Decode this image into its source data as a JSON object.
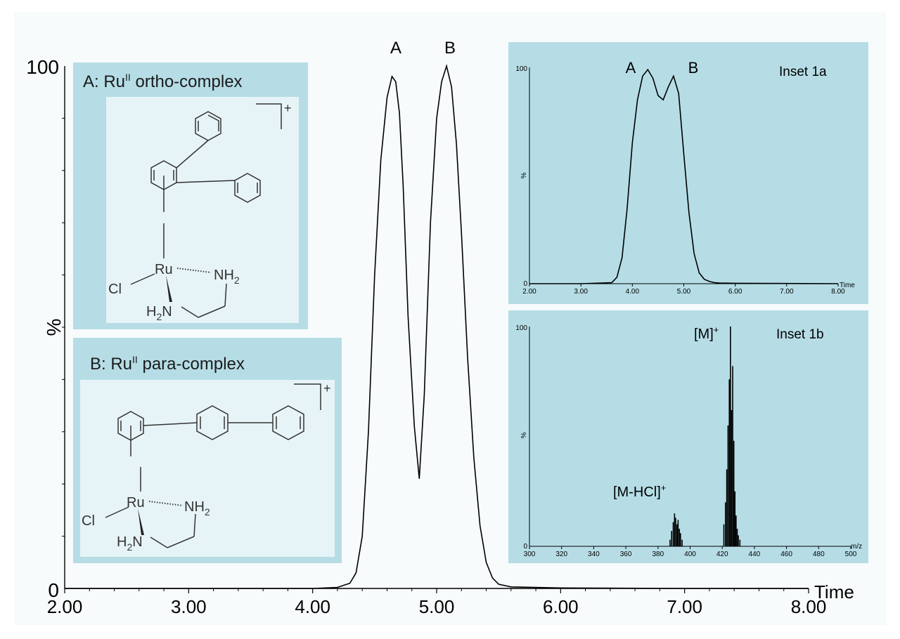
{
  "colors": {
    "page_bg": "#ffffff",
    "plot_bg": "#f7fbfc",
    "panel_bg": "#b6dde6",
    "panel_inner_bg": "#e7f4f7",
    "line": "#000000",
    "structure": "#333333"
  },
  "main": {
    "ylabel": "%",
    "x_axis_title": "Time",
    "y_tick_labels": [
      "0",
      "100"
    ],
    "peak_labels": [
      "A",
      "B"
    ]
  },
  "panels": {
    "ortho": {
      "title_prefix": "A:  Ru",
      "title_sup": "II",
      "title_suffix": " ortho-complex",
      "atoms": {
        "ru": "Ru",
        "cl": "Cl",
        "nh2": "NH",
        "h2n_h": "H",
        "h2n_n": "N",
        "sub2": "2",
        "charge": "+"
      }
    },
    "para": {
      "title_prefix": "B:  Ru",
      "title_sup": "II",
      "title_suffix": " para-complex",
      "atoms": {
        "ru": "Ru",
        "cl": "Cl",
        "nh2": "NH",
        "h2n_h": "H",
        "h2n_n": "N",
        "sub2": "2",
        "charge": "+"
      }
    }
  },
  "insets": {
    "a": {
      "title": "Inset 1a",
      "ylabel": "%",
      "y_tick_labels": [
        "0",
        "100"
      ],
      "x_axis_title": "Time",
      "peak_labels": [
        "A",
        "B"
      ]
    },
    "b": {
      "title": "Inset 1b",
      "ylabel": "%",
      "y_tick_labels": [
        "0",
        "100"
      ],
      "x_axis_title": "m/z",
      "ion_M": "[M]",
      "ion_M_sup": "+",
      "ion_MHCl": "[M-HCl]",
      "ion_MHCl_sup": "+"
    }
  },
  "chart_data": [
    {
      "id": "main",
      "type": "line",
      "xlabel": "Time",
      "ylabel": "%",
      "xlim": [
        2.0,
        8.0
      ],
      "ylim": [
        0,
        100
      ],
      "x_ticks": [
        2.0,
        3.0,
        4.0,
        5.0,
        6.0,
        7.0,
        8.0
      ],
      "x_tick_labels": [
        "2.00",
        "3.00",
        "4.00",
        "5.00",
        "6.00",
        "7.00",
        "8.00"
      ],
      "series": [
        {
          "x": [
            2.0,
            3.0,
            4.0,
            4.2,
            4.3,
            4.35,
            4.4,
            4.45,
            4.5,
            4.55,
            4.6,
            4.64,
            4.67,
            4.7,
            4.73,
            4.77,
            4.82,
            4.86,
            4.9,
            4.95,
            5.0,
            5.04,
            5.08,
            5.12,
            5.16,
            5.2,
            5.25,
            5.3,
            5.35,
            5.4,
            5.45,
            5.5,
            5.6,
            6.0,
            7.0,
            8.0
          ],
          "y": [
            0,
            0,
            0,
            0.2,
            1,
            3,
            10,
            30,
            60,
            82,
            94,
            98,
            97,
            91,
            77,
            52,
            31,
            21,
            37,
            70,
            90,
            97,
            100,
            96,
            85,
            68,
            44,
            25,
            12,
            5,
            2,
            0.8,
            0.3,
            0.1,
            0,
            0
          ]
        }
      ],
      "annotations": [
        "A",
        "B"
      ]
    },
    {
      "id": "inset_1a",
      "type": "line",
      "title": "Inset 1a",
      "xlabel": "Time",
      "ylabel": "%",
      "xlim": [
        2.0,
        8.0
      ],
      "ylim": [
        0,
        100
      ],
      "x_tick_labels": [
        "2.00",
        "3.00",
        "4.00",
        "5.00",
        "6.00",
        "7.00",
        "8.00"
      ],
      "series": [
        {
          "x": [
            2.0,
            3.0,
            3.6,
            3.7,
            3.8,
            3.9,
            4.0,
            4.1,
            4.2,
            4.3,
            4.4,
            4.5,
            4.6,
            4.7,
            4.8,
            4.9,
            5.0,
            5.1,
            5.2,
            5.3,
            5.4,
            5.5,
            5.6,
            5.7,
            6.0,
            7.0,
            8.0
          ],
          "y": [
            0,
            0,
            0.5,
            3,
            12,
            35,
            65,
            85,
            96,
            99,
            95,
            87,
            85,
            91,
            96,
            88,
            60,
            33,
            14,
            5,
            2,
            1,
            0.5,
            0.3,
            0.2,
            0.1,
            0
          ]
        }
      ],
      "annotations": [
        "A",
        "B"
      ]
    },
    {
      "id": "inset_1b",
      "type": "bar",
      "title": "Inset 1b",
      "xlabel": "m/z",
      "ylabel": "%",
      "xlim": [
        300,
        500
      ],
      "ylim": [
        0,
        100
      ],
      "x_tick_labels": [
        "300",
        "320",
        "340",
        "360",
        "380",
        "400",
        "420",
        "440",
        "460",
        "480",
        "500"
      ],
      "series": [
        {
          "x": [
            387.5,
            388.5,
            389.5,
            390.3,
            391.0,
            391.8,
            392.5,
            393.3,
            394.0,
            395.0,
            421.0,
            422.0,
            422.8,
            423.6,
            424.4,
            425.1,
            425.8,
            426.5,
            427.2,
            427.9,
            428.6,
            429.3,
            430.0,
            431.0
          ],
          "y": [
            3,
            7,
            11,
            15,
            13,
            10,
            12,
            8,
            6,
            3,
            10,
            20,
            35,
            55,
            76,
            100,
            62,
            82,
            48,
            25,
            14,
            8,
            5,
            3
          ]
        }
      ],
      "annotations": [
        "[M]+",
        "[M-HCl]+"
      ]
    }
  ]
}
